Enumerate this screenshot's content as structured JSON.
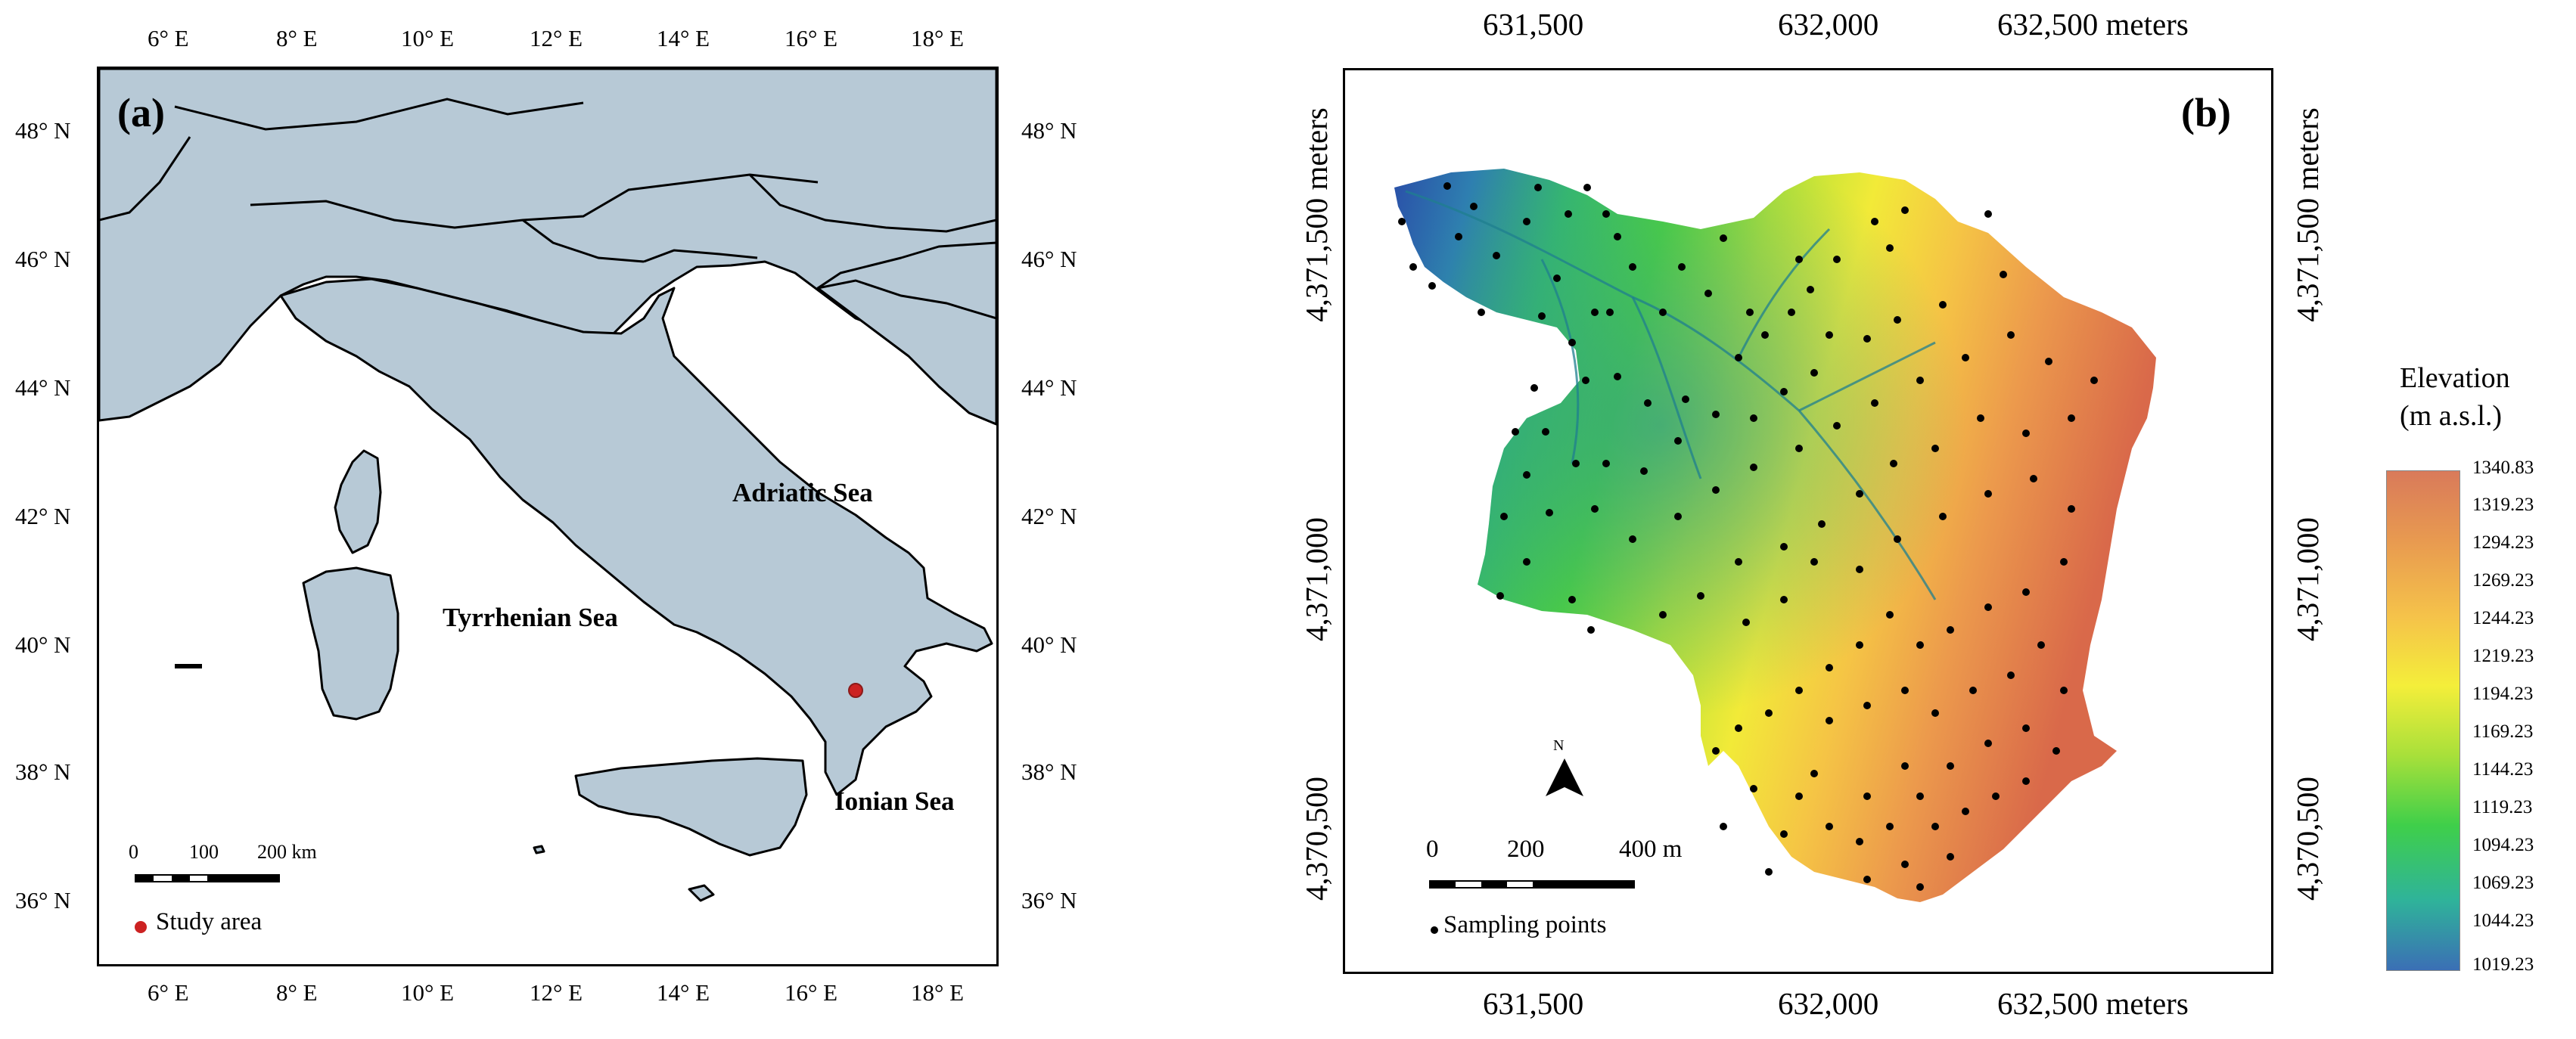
{
  "panel_a": {
    "label": "(a)",
    "lon_ticks": [
      "6° E",
      "8° E",
      "10° E",
      "12° E",
      "14° E",
      "16° E",
      "18° E"
    ],
    "lat_ticks": [
      "48° N",
      "46° N",
      "44° N",
      "42° N",
      "40° N",
      "38° N",
      "36° N"
    ],
    "seas": {
      "adriatic": "Adriatic Sea",
      "tyrrhenian": "Tyrrhenian Sea",
      "ionian": "Ionian Sea"
    },
    "scale_bar": {
      "zero": "0",
      "mid": "100",
      "end": "200 km"
    },
    "legend": {
      "study_area": "Study area"
    },
    "colors": {
      "land": "#b7c9d6",
      "study_point": "#cc2222"
    }
  },
  "panel_b": {
    "label": "(b)",
    "x_ticks": [
      "631,500",
      "632,000",
      "632,500 meters"
    ],
    "y_ticks": [
      "4,371,500 meters",
      "4,371,000",
      "4,370,500"
    ],
    "north_label": "N",
    "scale_bar": {
      "zero": "0",
      "mid": "200",
      "end": "400 m"
    },
    "legend": {
      "sampling_points": "Sampling points"
    }
  },
  "colorbar": {
    "title_line1": "Elevation",
    "title_line2": "(m a.s.l.)",
    "labels": [
      "1340.83",
      "1319.23",
      "1294.23",
      "1269.23",
      "1244.23",
      "1219.23",
      "1194.23",
      "1169.23",
      "1144.23",
      "1119.23",
      "1094.23",
      "1069.23",
      "1044.23",
      "1019.23"
    ],
    "colors": [
      "#d97a5a",
      "#e89a50",
      "#f5c24a",
      "#f4ee3a",
      "#a8e03a",
      "#3fcf4a",
      "#2fb39a",
      "#3b6fb5"
    ]
  }
}
